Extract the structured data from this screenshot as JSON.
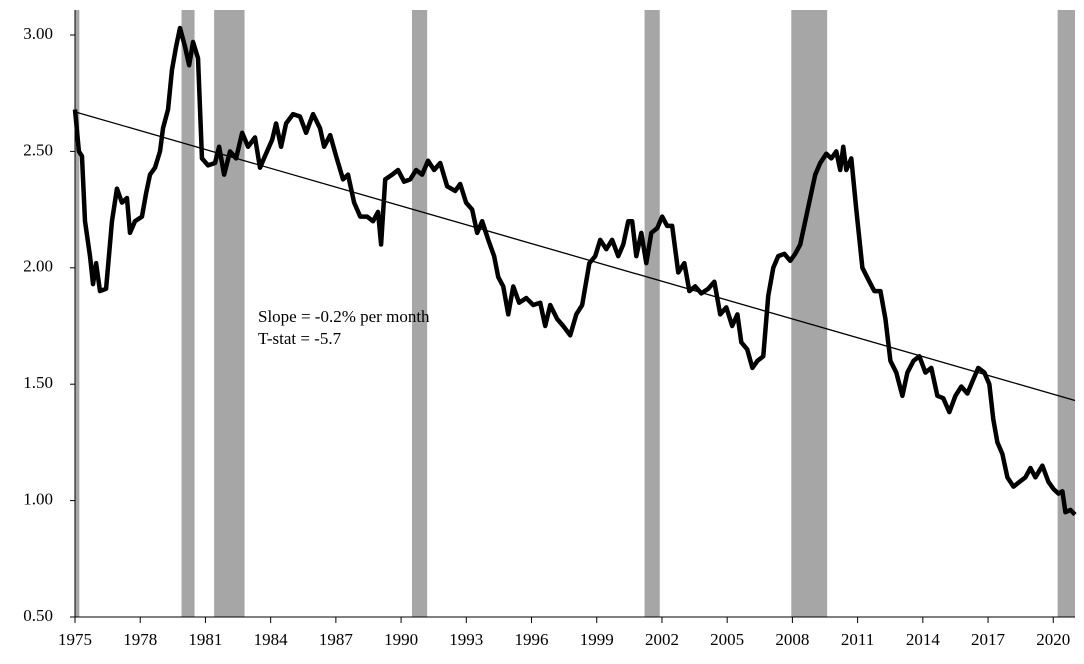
{
  "chart_data": {
    "type": "line",
    "annotations": [
      "Slope = -0.2% per month",
      "T-stat = -5.7"
    ],
    "xlim": [
      1975,
      2021
    ],
    "xticks": [
      1975,
      1978,
      1981,
      1984,
      1987,
      1990,
      1993,
      1996,
      1999,
      2002,
      2005,
      2008,
      2011,
      2014,
      2017,
      2020
    ],
    "ylim": [
      0.5,
      3.0
    ],
    "yticks": [
      {
        "value": 0.5,
        "label": "0.50"
      },
      {
        "value": 1.0,
        "label": "1.00"
      },
      {
        "value": 1.5,
        "label": "1.50"
      },
      {
        "value": 2.0,
        "label": "2.00"
      },
      {
        "value": 2.5,
        "label": "2.50"
      },
      {
        "value": 3.0,
        "label": "3.00"
      }
    ],
    "grid": false,
    "recession_color": "#a6a6a6",
    "recessions": [
      [
        1975.0,
        1975.2
      ],
      [
        1979.9,
        1980.5
      ],
      [
        1981.4,
        1982.8
      ],
      [
        1990.5,
        1991.2
      ],
      [
        2001.2,
        2001.9
      ],
      [
        2007.95,
        2009.6
      ],
      [
        2020.2,
        2021.0
      ]
    ],
    "series": [
      {
        "color": "#000000",
        "x": [
          1975.0,
          1975.18,
          1975.32,
          1975.46,
          1975.69,
          1975.83,
          1975.97,
          1976.15,
          1976.43,
          1976.7,
          1976.93,
          1977.16,
          1977.39,
          1977.53,
          1977.76,
          1978.08,
          1978.27,
          1978.45,
          1978.68,
          1978.91,
          1979.05,
          1979.28,
          1979.46,
          1979.65,
          1979.83,
          1980.06,
          1980.25,
          1980.43,
          1980.66,
          1980.84,
          1981.12,
          1981.44,
          1981.63,
          1981.86,
          1982.13,
          1982.41,
          1982.69,
          1982.96,
          1983.28,
          1983.51,
          1983.74,
          1984.07,
          1984.25,
          1984.48,
          1984.71,
          1985.03,
          1985.35,
          1985.63,
          1985.95,
          1986.27,
          1986.46,
          1986.74,
          1987.01,
          1987.33,
          1987.56,
          1987.84,
          1988.12,
          1988.44,
          1988.71,
          1988.94,
          1989.08,
          1989.27,
          1989.59,
          1989.86,
          1990.14,
          1990.42,
          1990.69,
          1990.97,
          1991.24,
          1991.52,
          1991.8,
          1992.12,
          1992.49,
          1992.72,
          1992.99,
          1993.27,
          1993.5,
          1993.73,
          1994.01,
          1994.28,
          1994.47,
          1994.7,
          1994.93,
          1995.16,
          1995.43,
          1995.76,
          1996.08,
          1996.4,
          1996.63,
          1996.86,
          1997.18,
          1997.46,
          1997.78,
          1998.06,
          1998.33,
          1998.66,
          1998.93,
          1999.16,
          1999.44,
          1999.71,
          1999.99,
          2000.22,
          2000.45,
          2000.63,
          2000.82,
          2001.05,
          2001.28,
          2001.51,
          2001.78,
          2002.01,
          2002.24,
          2002.47,
          2002.75,
          2003.03,
          2003.26,
          2003.53,
          2003.81,
          2004.13,
          2004.41,
          2004.68,
          2004.96,
          2005.23,
          2005.47,
          2005.65,
          2005.92,
          2006.16,
          2006.39,
          2006.66,
          2006.89,
          2007.12,
          2007.35,
          2007.63,
          2007.9,
          2008.13,
          2008.36,
          2008.59,
          2008.82,
          2009.05,
          2009.28,
          2009.56,
          2009.79,
          2010.02,
          2010.2,
          2010.34,
          2010.48,
          2010.71,
          2010.94,
          2011.22,
          2011.49,
          2011.77,
          2012.05,
          2012.28,
          2012.51,
          2012.78,
          2013.06,
          2013.29,
          2013.57,
          2013.84,
          2014.12,
          2014.39,
          2014.67,
          2014.94,
          2015.22,
          2015.5,
          2015.77,
          2016.05,
          2016.32,
          2016.55,
          2016.83,
          2017.06,
          2017.24,
          2017.43,
          2017.66,
          2017.89,
          2018.17,
          2018.44,
          2018.72,
          2018.95,
          2019.18,
          2019.5,
          2019.78,
          2020.01,
          2020.24,
          2020.42,
          2020.56,
          2020.79,
          2021.0
        ],
        "values": [
          2.68,
          2.5,
          2.48,
          2.2,
          2.05,
          1.93,
          2.02,
          1.9,
          1.91,
          2.2,
          2.34,
          2.28,
          2.3,
          2.15,
          2.2,
          2.22,
          2.32,
          2.4,
          2.43,
          2.5,
          2.6,
          2.68,
          2.85,
          2.95,
          3.03,
          2.95,
          2.87,
          2.97,
          2.9,
          2.47,
          2.44,
          2.45,
          2.52,
          2.4,
          2.5,
          2.47,
          2.58,
          2.52,
          2.56,
          2.43,
          2.48,
          2.55,
          2.62,
          2.52,
          2.62,
          2.66,
          2.65,
          2.58,
          2.66,
          2.6,
          2.52,
          2.57,
          2.48,
          2.38,
          2.4,
          2.28,
          2.22,
          2.22,
          2.2,
          2.24,
          2.1,
          2.38,
          2.4,
          2.42,
          2.37,
          2.38,
          2.42,
          2.4,
          2.46,
          2.42,
          2.45,
          2.35,
          2.33,
          2.36,
          2.28,
          2.25,
          2.15,
          2.2,
          2.12,
          2.05,
          1.96,
          1.92,
          1.8,
          1.92,
          1.85,
          1.87,
          1.84,
          1.85,
          1.75,
          1.84,
          1.78,
          1.75,
          1.71,
          1.8,
          1.84,
          2.02,
          2.05,
          2.12,
          2.08,
          2.12,
          2.05,
          2.1,
          2.2,
          2.2,
          2.05,
          2.15,
          2.02,
          2.15,
          2.17,
          2.22,
          2.18,
          2.18,
          1.98,
          2.02,
          1.9,
          1.92,
          1.89,
          1.91,
          1.94,
          1.8,
          1.83,
          1.75,
          1.8,
          1.68,
          1.65,
          1.57,
          1.6,
          1.62,
          1.88,
          2.0,
          2.05,
          2.06,
          2.03,
          2.06,
          2.1,
          2.2,
          2.3,
          2.4,
          2.45,
          2.49,
          2.47,
          2.5,
          2.42,
          2.52,
          2.42,
          2.47,
          2.25,
          2.0,
          1.95,
          1.9,
          1.9,
          1.78,
          1.6,
          1.55,
          1.45,
          1.55,
          1.6,
          1.62,
          1.55,
          1.57,
          1.45,
          1.44,
          1.38,
          1.45,
          1.49,
          1.46,
          1.52,
          1.57,
          1.55,
          1.5,
          1.35,
          1.25,
          1.2,
          1.1,
          1.06,
          1.08,
          1.1,
          1.14,
          1.1,
          1.15,
          1.08,
          1.05,
          1.03,
          1.04,
          0.95,
          0.96,
          0.94
        ]
      }
    ],
    "trend": {
      "color": "#000000",
      "x": [
        1975,
        2021
      ],
      "values": [
        2.67,
        1.43
      ]
    }
  }
}
